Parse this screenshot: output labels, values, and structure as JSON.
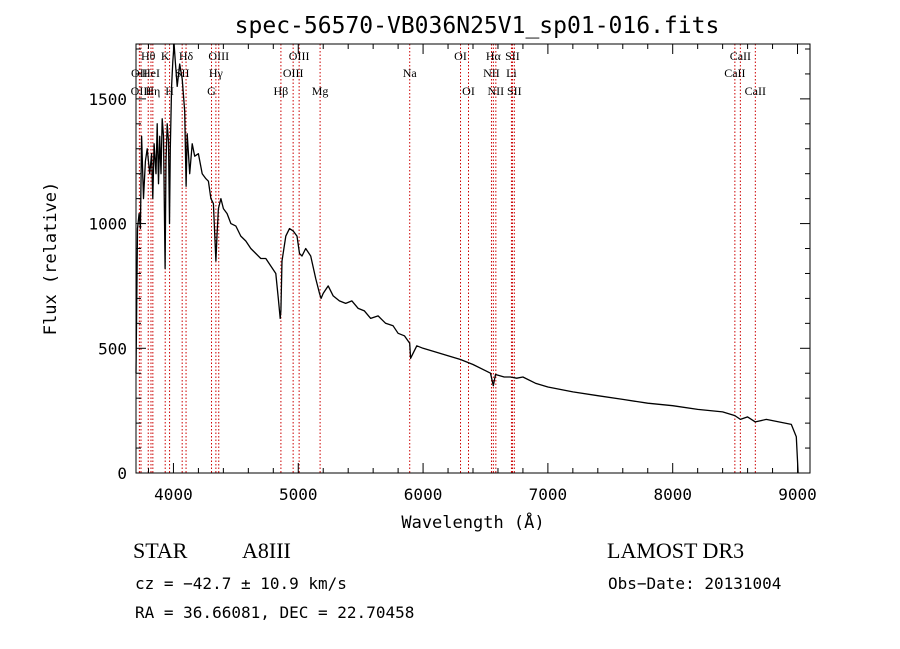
{
  "chart_data": {
    "type": "line",
    "title": "spec-56570-VB036N25V1_sp01-016.fits",
    "xlabel": "Wavelength (Å)",
    "ylabel": "Flux (relative)",
    "xlim": [
      3700,
      9100
    ],
    "ylim": [
      0,
      1720
    ],
    "xticks": [
      4000,
      5000,
      6000,
      7000,
      8000,
      9000
    ],
    "yticks": [
      0,
      500,
      1000,
      1500
    ],
    "series": [
      {
        "name": "flux",
        "x": [
          3700,
          3712,
          3725,
          3735,
          3745,
          3760,
          3775,
          3790,
          3810,
          3825,
          3835,
          3845,
          3860,
          3870,
          3880,
          3890,
          3900,
          3910,
          3920,
          3933,
          3940,
          3950,
          3960,
          3968,
          3975,
          3985,
          3995,
          4005,
          4015,
          4030,
          4050,
          4070,
          4090,
          4101,
          4110,
          4130,
          4150,
          4170,
          4200,
          4230,
          4260,
          4280,
          4300,
          4320,
          4340,
          4350,
          4360,
          4380,
          4400,
          4430,
          4460,
          4500,
          4540,
          4580,
          4620,
          4660,
          4700,
          4740,
          4780,
          4820,
          4840,
          4855,
          4861,
          4870,
          4885,
          4900,
          4930,
          4960,
          4990,
          5010,
          5030,
          5060,
          5100,
          5140,
          5170,
          5183,
          5200,
          5240,
          5280,
          5330,
          5380,
          5430,
          5480,
          5530,
          5580,
          5640,
          5700,
          5760,
          5800,
          5850,
          5893,
          5900,
          5950,
          6000,
          6100,
          6200,
          6300,
          6400,
          6500,
          6540,
          6563,
          6580,
          6650,
          6700,
          6750,
          6800,
          6900,
          7000,
          7200,
          7400,
          7600,
          7800,
          8000,
          8200,
          8400,
          8498,
          8542,
          8600,
          8662,
          8750,
          8850,
          8950,
          8990,
          9000,
          9005
        ],
        "values": [
          400,
          980,
          1040,
          980,
          1350,
          1100,
          1250,
          1300,
          1200,
          1280,
          1100,
          1320,
          1200,
          1400,
          1160,
          1350,
          1200,
          1420,
          1350,
          820,
          1250,
          1400,
          1330,
          1000,
          1300,
          1550,
          1650,
          1720,
          1650,
          1550,
          1640,
          1580,
          1450,
          1150,
          1360,
          1200,
          1320,
          1270,
          1280,
          1200,
          1180,
          1170,
          1100,
          1080,
          850,
          960,
          1060,
          1100,
          1060,
          1040,
          1000,
          990,
          950,
          930,
          900,
          880,
          860,
          860,
          830,
          800,
          700,
          620,
          650,
          850,
          900,
          950,
          980,
          970,
          950,
          880,
          870,
          900,
          870,
          780,
          720,
          700,
          720,
          750,
          710,
          690,
          680,
          690,
          660,
          650,
          620,
          630,
          600,
          590,
          560,
          550,
          520,
          460,
          510,
          500,
          485,
          470,
          455,
          435,
          410,
          400,
          350,
          395,
          385,
          385,
          380,
          385,
          360,
          345,
          325,
          310,
          295,
          280,
          270,
          255,
          245,
          230,
          215,
          225,
          205,
          215,
          205,
          195,
          145,
          50,
          0
        ]
      }
    ],
    "line_markers": [
      {
        "label": "Hθ",
        "x": 3798,
        "row": 1
      },
      {
        "label": "OII",
        "x": 3727,
        "row": 2
      },
      {
        "label": "OIII",
        "x": 3740,
        "row": 3
      },
      {
        "label": "HeI",
        "x": 3820,
        "row": 2
      },
      {
        "label": "Hη",
        "x": 3835,
        "row": 3
      },
      {
        "label": "K",
        "x": 3934,
        "row": 1
      },
      {
        "label": "H",
        "x": 3969,
        "row": 3
      },
      {
        "label": "SII",
        "x": 4070,
        "row": 2
      },
      {
        "label": "Hδ",
        "x": 4101,
        "row": 1
      },
      {
        "label": "OIII",
        "x": 4363,
        "row": 1
      },
      {
        "label": "Hγ",
        "x": 4340,
        "row": 2
      },
      {
        "label": "G",
        "x": 4305,
        "row": 3
      },
      {
        "label": "Hβ",
        "x": 4861,
        "row": 3
      },
      {
        "label": "OIII",
        "x": 5007,
        "row": 1
      },
      {
        "label": "OIII",
        "x": 4959,
        "row": 2
      },
      {
        "label": "Mg",
        "x": 5175,
        "row": 3
      },
      {
        "label": "Na",
        "x": 5893,
        "row": 2
      },
      {
        "label": "OI",
        "x": 6300,
        "row": 1
      },
      {
        "label": "OI",
        "x": 6364,
        "row": 3
      },
      {
        "label": "Hα",
        "x": 6563,
        "row": 1
      },
      {
        "label": "SII",
        "x": 6716,
        "row": 1
      },
      {
        "label": "NII",
        "x": 6548,
        "row": 2
      },
      {
        "label": "Li",
        "x": 6708,
        "row": 2
      },
      {
        "label": "NII",
        "x": 6583,
        "row": 3
      },
      {
        "label": "SII",
        "x": 6731,
        "row": 3
      },
      {
        "label": "CaII",
        "x": 8542,
        "row": 1
      },
      {
        "label": "CaII",
        "x": 8498,
        "row": 2
      },
      {
        "label": "CaII",
        "x": 8662,
        "row": 3
      }
    ]
  },
  "info": {
    "obj_class": "STAR",
    "subclass": "A8III",
    "survey": "LAMOST DR3",
    "redshift": "cz = −42.7 ± 10.9 km/s",
    "obs_date": "Obs−Date: 20131004",
    "coords": "RA =  36.66081, DEC =  22.70458"
  }
}
